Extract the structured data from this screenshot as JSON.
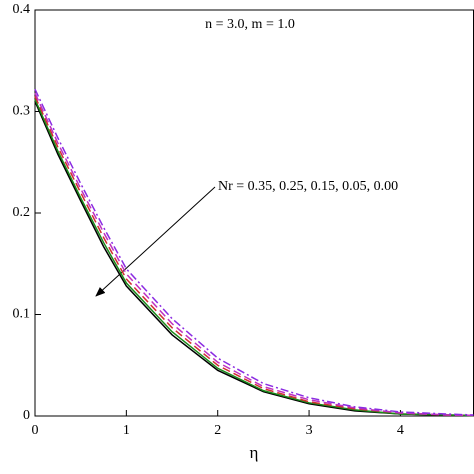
{
  "chart_data": {
    "type": "line",
    "xlabel": "η",
    "annotations": [
      "n = 3.0, m = 1.0",
      "Nr = 0.35, 0.25, 0.15, 0.05, 0.00"
    ],
    "x": [
      0,
      0.25,
      0.5,
      0.75,
      1,
      1.5,
      2,
      2.5,
      3,
      3.5,
      4,
      4.5,
      4.8
    ],
    "series": [
      {
        "color": "#000000",
        "style": "solid",
        "values": [
          0.31,
          0.258,
          0.212,
          0.167,
          0.128,
          0.08,
          0.045,
          0.024,
          0.012,
          0.005,
          0.002,
          0.001,
          0.0005
        ]
      },
      {
        "color": "#1a8a1a",
        "style": "solid",
        "values": [
          0.312,
          0.261,
          0.215,
          0.171,
          0.131,
          0.083,
          0.047,
          0.025,
          0.013,
          0.006,
          0.002,
          0.001,
          0.0005
        ]
      },
      {
        "color": "#d03030",
        "style": "dashed",
        "values": [
          0.315,
          0.265,
          0.22,
          0.176,
          0.135,
          0.087,
          0.05,
          0.027,
          0.014,
          0.007,
          0.003,
          0.001,
          0.0006
        ]
      },
      {
        "color": "#c030c0",
        "style": "dashed",
        "values": [
          0.318,
          0.269,
          0.224,
          0.181,
          0.14,
          0.091,
          0.053,
          0.029,
          0.016,
          0.008,
          0.003,
          0.001,
          0.0007
        ]
      },
      {
        "color": "#8a2be2",
        "style": "dashdot",
        "values": [
          0.322,
          0.274,
          0.229,
          0.186,
          0.145,
          0.096,
          0.057,
          0.032,
          0.018,
          0.009,
          0.004,
          0.002,
          0.001
        ]
      }
    ],
    "xlim": [
      0,
      4.8
    ],
    "ylim": [
      0,
      0.4
    ],
    "xticks": [
      0,
      1,
      2,
      3,
      4
    ],
    "yticks": [
      0,
      0.1,
      0.2,
      0.3,
      0.4
    ]
  }
}
